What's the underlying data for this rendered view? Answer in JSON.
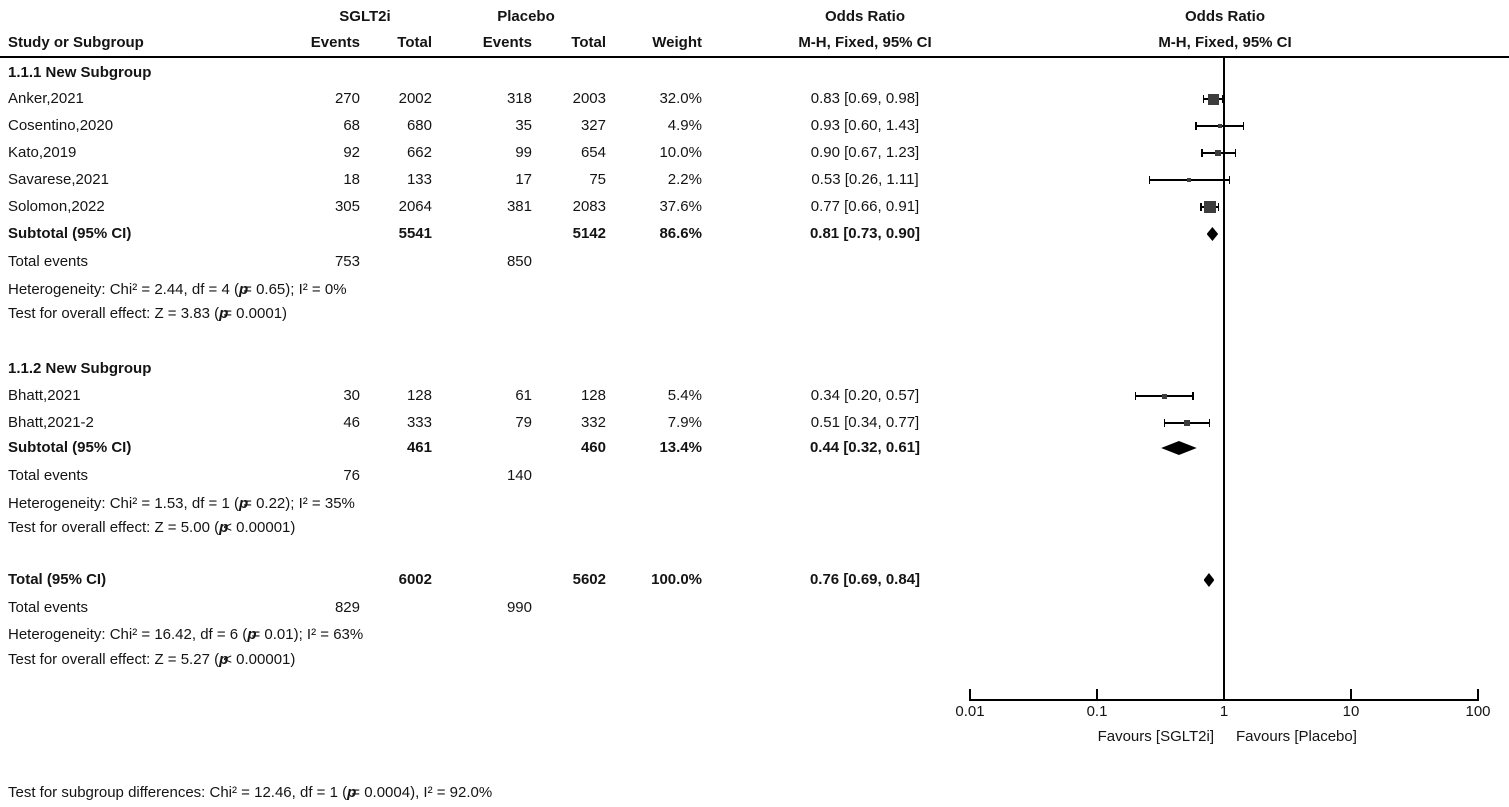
{
  "header": {
    "group1": "SGLT2i",
    "group2": "Placebo",
    "or_text_col": "Odds Ratio",
    "or_plot_col": "Odds Ratio",
    "study": "Study or Subgroup",
    "events1": "Events",
    "total1": "Total",
    "events2": "Events",
    "total2": "Total",
    "weight": "Weight",
    "mh_text": "M-H, Fixed, 95% CI",
    "mh_plot": "M-H, Fixed, 95% CI"
  },
  "sections": [
    {
      "title": "1.1.1 New Subgroup",
      "studies": [
        {
          "name": "Anker,2021",
          "e1": "270",
          "t1": "2002",
          "e2": "318",
          "t2": "2003",
          "weight": "32.0%",
          "ci_text": "0.83 [0.69, 0.98]",
          "or": 0.83,
          "low": 0.69,
          "high": 0.98,
          "w": 32.0
        },
        {
          "name": "Cosentino,2020",
          "e1": "68",
          "t1": "680",
          "e2": "35",
          "t2": "327",
          "weight": "4.9%",
          "ci_text": "0.93 [0.60, 1.43]",
          "or": 0.93,
          "low": 0.6,
          "high": 1.43,
          "w": 4.9
        },
        {
          "name": "Kato,2019",
          "e1": "92",
          "t1": "662",
          "e2": "99",
          "t2": "654",
          "weight": "10.0%",
          "ci_text": "0.90 [0.67, 1.23]",
          "or": 0.9,
          "low": 0.67,
          "high": 1.23,
          "w": 10.0
        },
        {
          "name": "Savarese,2021",
          "e1": "18",
          "t1": "133",
          "e2": "17",
          "t2": "75",
          "weight": "2.2%",
          "ci_text": "0.53 [0.26, 1.11]",
          "or": 0.53,
          "low": 0.26,
          "high": 1.11,
          "w": 2.2
        },
        {
          "name": "Solomon,2022",
          "e1": "305",
          "t1": "2064",
          "e2": "381",
          "t2": "2083",
          "weight": "37.6%",
          "ci_text": "0.77 [0.66, 0.91]",
          "or": 0.77,
          "low": 0.66,
          "high": 0.91,
          "w": 37.6
        }
      ],
      "subtotal": {
        "label": "Subtotal (95% CI)",
        "t1": "5541",
        "t2": "5142",
        "weight": "86.6%",
        "ci_text": "0.81 [0.73, 0.90]",
        "or": 0.81,
        "low": 0.73,
        "high": 0.9
      },
      "total_events": {
        "label": "Total events",
        "e1": "753",
        "e2": "850"
      },
      "heterogeneity": "Heterogeneity: Chi² = 2.44, df = 4 (*p* = 0.65); I² = 0%",
      "effect": "Test for overall effect: Z = 3.83 (*p* = 0.0001)"
    },
    {
      "title": "1.1.2 New Subgroup",
      "studies": [
        {
          "name": "Bhatt,2021",
          "e1": "30",
          "t1": "128",
          "e2": "61",
          "t2": "128",
          "weight": "5.4%",
          "ci_text": "0.34 [0.20, 0.57]",
          "or": 0.34,
          "low": 0.2,
          "high": 0.57,
          "w": 5.4
        },
        {
          "name": "Bhatt,2021-2",
          "e1": "46",
          "t1": "333",
          "e2": "79",
          "t2": "332",
          "weight": "7.9%",
          "ci_text": "0.51 [0.34, 0.77]",
          "or": 0.51,
          "low": 0.34,
          "high": 0.77,
          "w": 7.9
        }
      ],
      "subtotal": {
        "label": "Subtotal (95% CI)",
        "t1": "461",
        "t2": "460",
        "weight": "13.4%",
        "ci_text": "0.44 [0.32, 0.61]",
        "or": 0.44,
        "low": 0.32,
        "high": 0.61
      },
      "total_events": {
        "label": "Total events",
        "e1": "76",
        "e2": "140"
      },
      "heterogeneity": "Heterogeneity: Chi² = 1.53, df = 1 (*p* = 0.22); I² = 35%",
      "effect": "Test for overall effect: Z = 5.00 (*p* < 0.00001)"
    }
  ],
  "total": {
    "label": "Total (95% CI)",
    "t1": "6002",
    "t2": "5602",
    "weight": "100.0%",
    "ci_text": "0.76 [0.69, 0.84]",
    "or": 0.76,
    "low": 0.69,
    "high": 0.84,
    "total_events": {
      "label": "Total events",
      "e1": "829",
      "e2": "990"
    },
    "heterogeneity": "Heterogeneity: Chi² = 16.42, df = 6 (*p* = 0.01); I² = 63%",
    "effect": "Test for overall effect: Z = 5.27 (*p* < 0.00001)",
    "subgroup_diff": "Test for subgroup differences: Chi² = 12.46, df = 1 (*p* = 0.0004), I² = 92.0%"
  },
  "axis": {
    "ticks": [
      "0.01",
      "0.1",
      "1",
      "10",
      "100"
    ],
    "favours_left": "Favours [SGLT2i]",
    "favours_right": "Favours [Placebo]"
  },
  "style": {
    "square_color": "#3d3d3d",
    "diamond_color": "#000000",
    "line_color": "#000000"
  },
  "chart_data": {
    "type": "forest",
    "title": "Odds Ratio — M-H, Fixed, 95% CI",
    "x_scale": "log",
    "xlim": [
      0.01,
      100
    ],
    "x_ticks": [
      0.01,
      0.1,
      1,
      10,
      100
    ],
    "comparison": [
      "SGLT2i",
      "Placebo"
    ],
    "favours": [
      "Favours [SGLT2i]",
      "Favours [Placebo]"
    ],
    "groups": [
      {
        "name": "1.1.1 New Subgroup",
        "studies": [
          {
            "study": "Anker,2021",
            "sglt2i_events": 270,
            "sglt2i_total": 2002,
            "placebo_events": 318,
            "placebo_total": 2003,
            "weight_pct": 32.0,
            "or": 0.83,
            "ci95": [
              0.69,
              0.98
            ]
          },
          {
            "study": "Cosentino,2020",
            "sglt2i_events": 68,
            "sglt2i_total": 680,
            "placebo_events": 35,
            "placebo_total": 327,
            "weight_pct": 4.9,
            "or": 0.93,
            "ci95": [
              0.6,
              1.43
            ]
          },
          {
            "study": "Kato,2019",
            "sglt2i_events": 92,
            "sglt2i_total": 662,
            "placebo_events": 99,
            "placebo_total": 654,
            "weight_pct": 10.0,
            "or": 0.9,
            "ci95": [
              0.67,
              1.23
            ]
          },
          {
            "study": "Savarese,2021",
            "sglt2i_events": 18,
            "sglt2i_total": 133,
            "placebo_events": 17,
            "placebo_total": 75,
            "weight_pct": 2.2,
            "or": 0.53,
            "ci95": [
              0.26,
              1.11
            ]
          },
          {
            "study": "Solomon,2022",
            "sglt2i_events": 305,
            "sglt2i_total": 2064,
            "placebo_events": 381,
            "placebo_total": 2083,
            "weight_pct": 37.6,
            "or": 0.77,
            "ci95": [
              0.66,
              0.91
            ]
          }
        ],
        "subtotal": {
          "sglt2i_total": 5541,
          "placebo_total": 5142,
          "weight_pct": 86.6,
          "or": 0.81,
          "ci95": [
            0.73,
            0.9
          ],
          "total_events_sglt2i": 753,
          "total_events_placebo": 850
        },
        "heterogeneity": {
          "chi2": 2.44,
          "df": 4,
          "p": 0.65,
          "i2_pct": 0
        },
        "overall_effect": {
          "z": 3.83,
          "p": 0.0001
        }
      },
      {
        "name": "1.1.2 New Subgroup",
        "studies": [
          {
            "study": "Bhatt,2021",
            "sglt2i_events": 30,
            "sglt2i_total": 128,
            "placebo_events": 61,
            "placebo_total": 128,
            "weight_pct": 5.4,
            "or": 0.34,
            "ci95": [
              0.2,
              0.57
            ]
          },
          {
            "study": "Bhatt,2021-2",
            "sglt2i_events": 46,
            "sglt2i_total": 333,
            "placebo_events": 79,
            "placebo_total": 332,
            "weight_pct": 7.9,
            "or": 0.51,
            "ci95": [
              0.34,
              0.77
            ]
          }
        ],
        "subtotal": {
          "sglt2i_total": 461,
          "placebo_total": 460,
          "weight_pct": 13.4,
          "or": 0.44,
          "ci95": [
            0.32,
            0.61
          ],
          "total_events_sglt2i": 76,
          "total_events_placebo": 140
        },
        "heterogeneity": {
          "chi2": 1.53,
          "df": 1,
          "p": 0.22,
          "i2_pct": 35
        },
        "overall_effect": {
          "z": 5.0,
          "p": "<0.00001"
        }
      }
    ],
    "total": {
      "sglt2i_total": 6002,
      "placebo_total": 5602,
      "weight_pct": 100.0,
      "or": 0.76,
      "ci95": [
        0.69,
        0.84
      ],
      "total_events_sglt2i": 829,
      "total_events_placebo": 990,
      "heterogeneity": {
        "chi2": 16.42,
        "df": 6,
        "p": 0.01,
        "i2_pct": 63
      },
      "overall_effect": {
        "z": 5.27,
        "p": "<0.00001"
      },
      "subgroup_differences": {
        "chi2": 12.46,
        "df": 1,
        "p": 0.0004,
        "i2_pct": 92.0
      }
    }
  }
}
